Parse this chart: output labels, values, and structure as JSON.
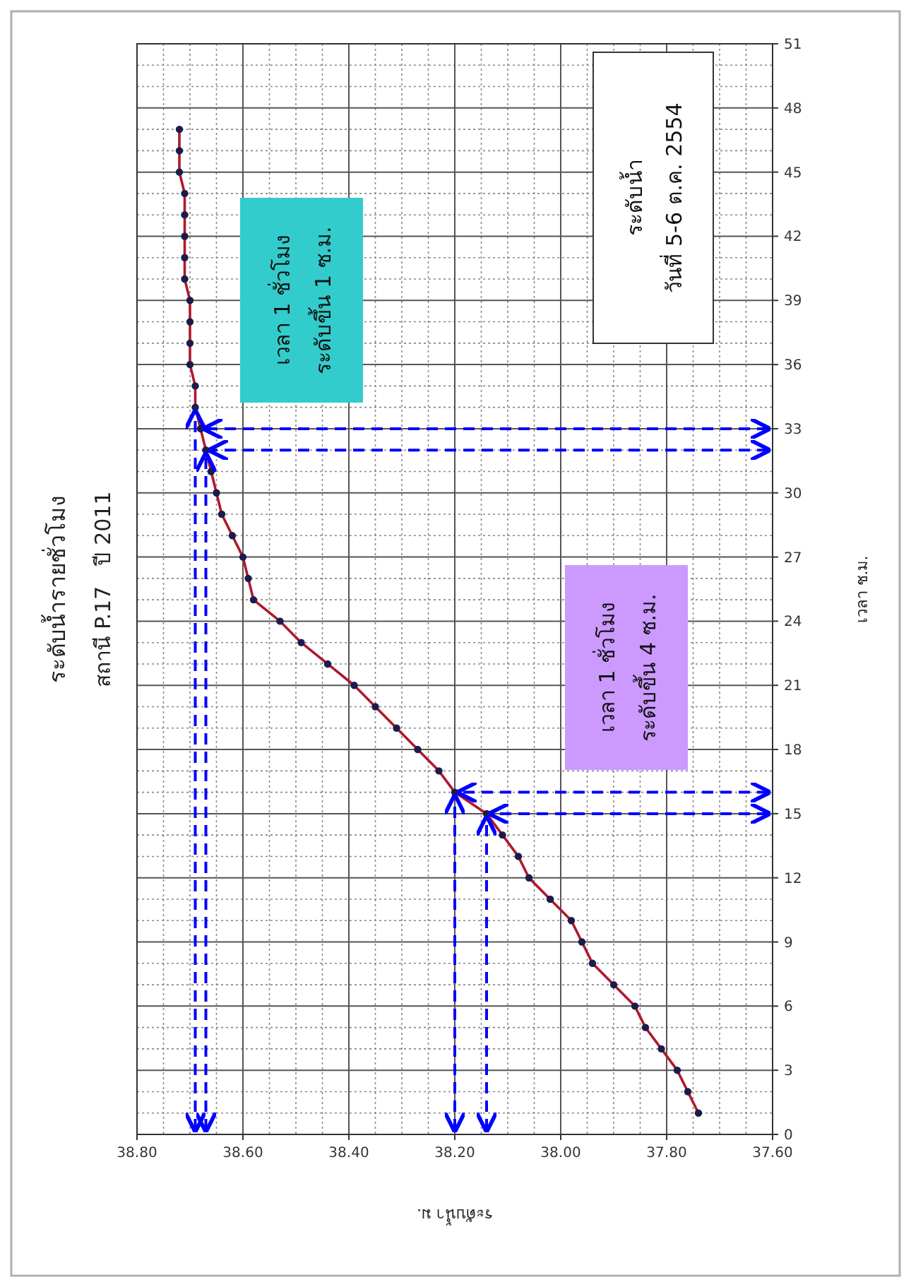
{
  "chart_data": {
    "type": "line",
    "title": "ระดับน้ำรายชั่วโมง",
    "subtitle": "สถานี P.17   ปี 2011",
    "xlabel": "ระดับน้ำ ม.",
    "ylabel": "เวลา ช.ม.",
    "x": [
      37.74,
      37.76,
      37.78,
      37.81,
      37.84,
      37.86,
      37.9,
      37.94,
      37.96,
      37.98,
      38.02,
      38.06,
      38.08,
      38.11,
      38.14,
      38.2,
      38.23,
      38.27,
      38.31,
      38.35,
      38.39,
      38.44,
      38.49,
      38.53,
      38.58,
      38.59,
      38.6,
      38.62,
      38.64,
      38.65,
      38.66,
      38.67,
      38.68,
      38.69,
      38.69,
      38.7,
      38.7,
      38.7,
      38.7,
      38.71,
      38.71,
      38.71,
      38.71,
      38.71,
      38.72,
      38.72,
      38.72
    ],
    "series": [
      {
        "color": "#b0182e",
        "values": [
          1,
          2,
          3,
          4,
          5,
          6,
          7,
          8,
          9,
          10,
          11,
          12,
          13,
          14,
          15,
          16,
          17,
          18,
          19,
          20,
          21,
          22,
          23,
          24,
          25,
          26,
          27,
          28,
          29,
          30,
          31,
          32,
          33,
          34,
          35,
          36,
          37,
          38,
          39,
          40,
          41,
          42,
          43,
          44,
          45,
          46,
          47
        ]
      }
    ],
    "xlim": [
      38.8,
      37.6
    ],
    "xticks": [
      {
        "value": 38.8,
        "label": "38.80"
      },
      {
        "value": 38.6,
        "label": "38.60"
      },
      {
        "value": 38.4,
        "label": "38.40"
      },
      {
        "value": 38.2,
        "label": "38.20"
      },
      {
        "value": 38.0,
        "label": "38.00"
      },
      {
        "value": 37.8,
        "label": "37.80"
      },
      {
        "value": 37.6,
        "label": "37.60"
      }
    ],
    "ylim": [
      0,
      51
    ],
    "yticks": [
      0,
      3,
      6,
      9,
      12,
      15,
      18,
      21,
      24,
      27,
      30,
      33,
      36,
      39,
      42,
      45,
      48,
      51
    ],
    "grid": true,
    "marker": "circle",
    "line_style": "solid",
    "ref_lines": [
      {
        "axis": "y",
        "value": 15,
        "color": "#0000ff",
        "line_style": "dashed"
      },
      {
        "axis": "y",
        "value": 16,
        "color": "#0000ff",
        "line_style": "dashed"
      },
      {
        "axis": "y",
        "value": 32,
        "color": "#0000ff",
        "line_style": "dashed"
      },
      {
        "axis": "y",
        "value": 33,
        "color": "#0000ff",
        "line_style": "dashed"
      },
      {
        "axis": "x",
        "value": 38.14,
        "color": "#0000ff",
        "line_style": "dashed"
      },
      {
        "axis": "x",
        "value": 38.2,
        "color": "#0000ff",
        "line_style": "dashed"
      },
      {
        "axis": "x",
        "value": 38.67,
        "color": "#0000ff",
        "line_style": "dashed"
      },
      {
        "axis": "x",
        "value": 38.69,
        "color": "#0000ff",
        "line_style": "dashed"
      }
    ],
    "annotations": [
      "ระดับน้ำ\nวันที่ 5-6 ต.ค. 2554",
      "เวลา 1 ชั่วโมง\nระดับขึ้น 1 ซ.ม.",
      "เวลา 1 ชั่วโมง\nระดับขึ้น 4 ซ.ม."
    ]
  }
}
